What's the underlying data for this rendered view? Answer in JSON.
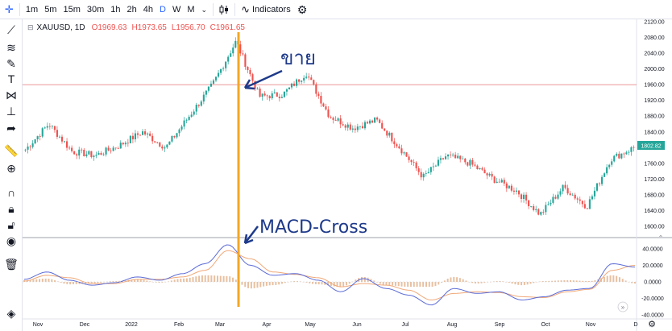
{
  "toolbar": {
    "timeframes": [
      "1m",
      "5m",
      "15m",
      "30m",
      "1h",
      "2h",
      "4h",
      "D",
      "W",
      "M"
    ],
    "active_timeframe": "D",
    "indicators_label": "Indicators",
    "icons": [
      "crosshair-icon",
      "candles-icon",
      "chevron-down-icon",
      "indicators-icon",
      "settings-icon"
    ]
  },
  "left_tools": [
    "trendline-icon",
    "fib-icon",
    "brush-icon",
    "text-icon",
    "pattern-icon",
    "prediction-icon",
    "arrow-icon",
    "ruler-icon",
    "zoom-icon",
    "magnet-icon",
    "lock-icon",
    "unlock-icon",
    "eye-icon",
    "trash-icon",
    "layers-icon"
  ],
  "legend": {
    "symbol": "XAUUSD, 1D",
    "open": "O1969.63",
    "high": "H1973.65",
    "low": "L1956.70",
    "close": "C1961.65"
  },
  "price_axis": {
    "ticks": [
      "2120.00",
      "2080.00",
      "2040.00",
      "2000.00",
      "1960.00",
      "1920.00",
      "1880.00",
      "1840.00",
      "1800.00",
      "1760.00",
      "1720.00",
      "1680.00",
      "1640.00",
      "1600.00"
    ],
    "current_price": "1802.82",
    "current_price_color": "#26a69a",
    "horizontal_line_price": 1960
  },
  "macd_axis": {
    "ticks": [
      "40.0000",
      "20.0000",
      "0.0000",
      "-20.0000",
      "-40.0000"
    ]
  },
  "time_axis": {
    "labels": [
      "Nov",
      "Dec",
      "2022",
      "Feb",
      "Mar",
      "Apr",
      "May",
      "Jun",
      "Jul",
      "Aug",
      "Sep",
      "Oct",
      "Nov",
      "D"
    ]
  },
  "annotations": {
    "sell_text": "ขาย",
    "macd_text": "MACD-Cross"
  },
  "colors": {
    "up": "#26a69a",
    "down": "#ef5350",
    "macd_line": "#5b6bd6",
    "signal_line": "#f0a878",
    "histogram": "#e8c0a0",
    "vertical_marker": "#f5a623",
    "annotation": "#1e3a8a"
  },
  "chart_data": {
    "type": "candlestick",
    "title": "XAUUSD, 1D",
    "x": [
      "Nov",
      "Dec",
      "2022",
      "Feb",
      "Mar",
      "Apr",
      "May",
      "Jun",
      "Jul",
      "Aug",
      "Sep",
      "Oct",
      "Nov"
    ],
    "price_close_path": [
      [
        "Nov",
        1795
      ],
      [
        "Nov",
        1860
      ],
      [
        "Dec",
        1790
      ],
      [
        "Dec",
        1780
      ],
      [
        "2022",
        1805
      ],
      [
        "2022",
        1840
      ],
      [
        "Feb",
        1800
      ],
      [
        "Feb",
        1880
      ],
      [
        "Mar",
        1960
      ],
      [
        "Mar",
        2070
      ],
      [
        "Mar",
        1930
      ],
      [
        "Apr",
        1935
      ],
      [
        "Apr",
        1990
      ],
      [
        "May",
        1880
      ],
      [
        "Jun",
        1850
      ],
      [
        "Jun",
        1870
      ],
      [
        "Jul",
        1800
      ],
      [
        "Jul",
        1725
      ],
      [
        "Aug",
        1780
      ],
      [
        "Aug",
        1760
      ],
      [
        "Sep",
        1720
      ],
      [
        "Sep",
        1690
      ],
      [
        "Oct",
        1630
      ],
      [
        "Oct",
        1700
      ],
      [
        "Nov",
        1650
      ],
      [
        "Nov",
        1770
      ],
      [
        "Nov",
        1800
      ]
    ],
    "ylim": [
      1580,
      2130
    ],
    "macd": {
      "ylim": [
        -45,
        48
      ],
      "macd_line": [
        3,
        12,
        2,
        -4,
        -1,
        6,
        2,
        10,
        22,
        45,
        20,
        8,
        10,
        2,
        -12,
        4,
        -8,
        -16,
        -28,
        -8,
        -14,
        -12,
        -22,
        -18,
        -10,
        -8,
        22,
        18
      ],
      "signal_line": [
        1,
        8,
        5,
        -2,
        -2,
        3,
        3,
        6,
        14,
        38,
        28,
        12,
        9,
        5,
        -6,
        -2,
        -4,
        -10,
        -22,
        -14,
        -12,
        -13,
        -18,
        -19,
        -12,
        -9,
        14,
        20
      ]
    }
  }
}
